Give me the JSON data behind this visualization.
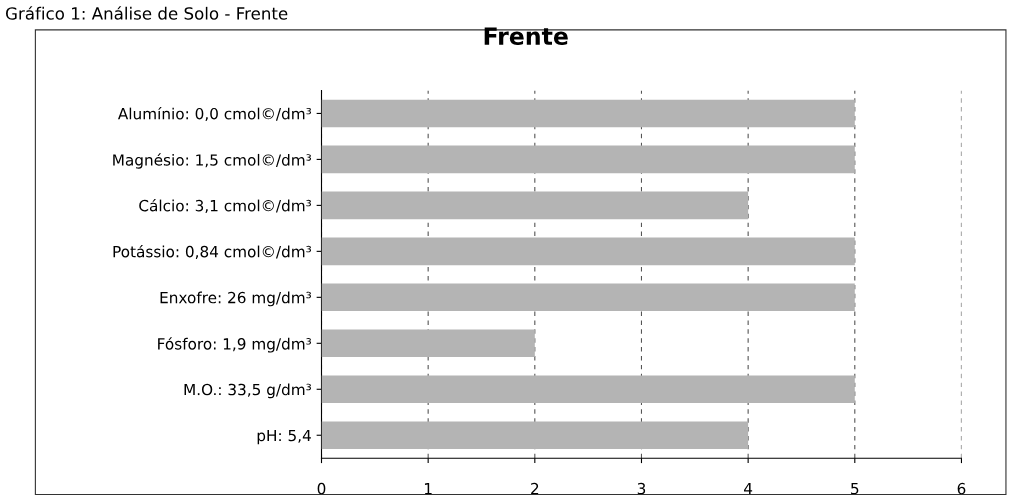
{
  "chart_data": {
    "type": "bar",
    "orientation": "horizontal",
    "title": "Frente",
    "annotations": [
      "Gráfico 1: Análise de Solo - Frente"
    ],
    "categories": [
      "Alumínio: 0,0 cmol©/dm³",
      "Magnésio: 1,5 cmol©/dm³",
      "Cálcio: 3,1 cmol©/dm³",
      "Potássio: 0,84 cmol©/dm³",
      "Enxofre: 26 mg/dm³",
      "Fósforo: 1,9 mg/dm³",
      "M.O.: 33,5 g/dm³",
      "pH: 5,4"
    ],
    "values": [
      5,
      5,
      4,
      5,
      5,
      2,
      5,
      4
    ],
    "color": "#b4b4b4",
    "xlim": [
      0,
      6
    ],
    "xticks": [
      0,
      1,
      2,
      3,
      4,
      5,
      6
    ],
    "grid": "x"
  }
}
